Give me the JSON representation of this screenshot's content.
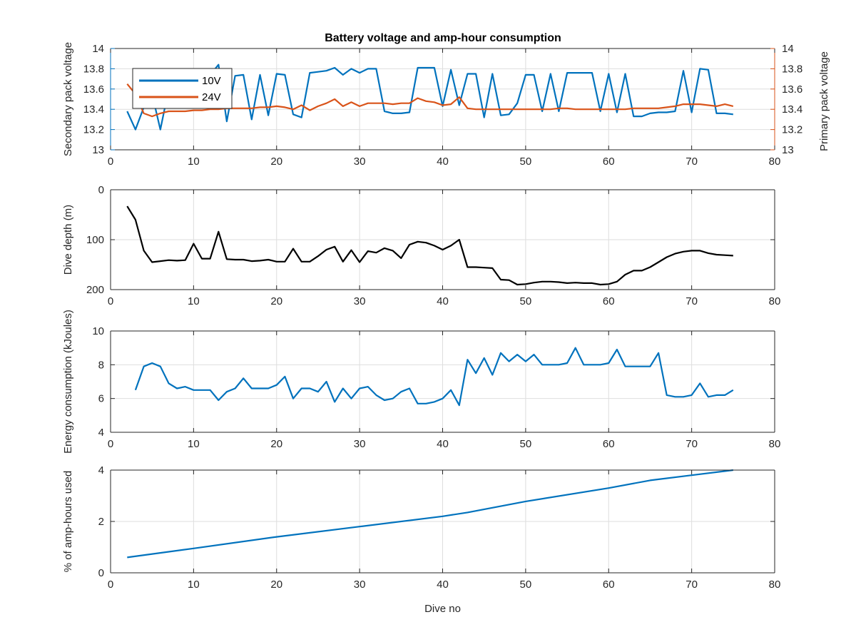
{
  "figure": {
    "title": "Battery voltage and amp-hour consumption",
    "colors": {
      "blue": "#0072BD",
      "orange": "#D95319",
      "black": "#000000",
      "axis": "#262626",
      "grid": "#dedede"
    }
  },
  "chart_data": [
    {
      "type": "line",
      "title": "Battery voltage and amp-hour consumption",
      "xlabel": "",
      "ylabel": "Secondary pack voltage",
      "ylabel_right": "Primary pack voltage",
      "xlim": [
        0,
        80
      ],
      "ylim": [
        13,
        14
      ],
      "ylim_right": [
        13,
        14
      ],
      "xticks": [
        0,
        10,
        20,
        30,
        40,
        50,
        60,
        70,
        80
      ],
      "yticks": [
        13,
        13.2,
        13.4,
        13.6,
        13.8,
        14
      ],
      "yticks_right": [
        13,
        13.2,
        13.4,
        13.6,
        13.8,
        14
      ],
      "grid": true,
      "legend": "top-left",
      "series": [
        {
          "name": "10V",
          "axis": "left",
          "color": "#0072BD",
          "x": [
            2,
            3,
            4,
            5,
            6,
            7,
            8,
            9,
            10,
            11,
            12,
            13,
            14,
            15,
            16,
            17,
            18,
            19,
            20,
            21,
            22,
            23,
            24,
            25,
            26,
            27,
            28,
            29,
            30,
            31,
            32,
            33,
            34,
            35,
            36,
            37,
            38,
            39,
            40,
            41,
            42,
            43,
            44,
            45,
            46,
            47,
            48,
            49,
            50,
            51,
            52,
            53,
            54,
            55,
            56,
            57,
            58,
            59,
            60,
            61,
            62,
            63,
            64,
            65,
            66,
            67,
            68,
            69,
            70,
            71,
            72,
            73,
            74,
            75
          ],
          "values": [
            13.38,
            13.2,
            13.42,
            13.55,
            13.2,
            13.6,
            13.68,
            13.7,
            13.72,
            13.7,
            13.74,
            13.84,
            13.28,
            13.73,
            13.74,
            13.3,
            13.74,
            13.34,
            13.75,
            13.74,
            13.35,
            13.32,
            13.76,
            13.77,
            13.78,
            13.81,
            13.74,
            13.8,
            13.76,
            13.8,
            13.8,
            13.38,
            13.36,
            13.36,
            13.37,
            13.81,
            13.81,
            13.81,
            13.43,
            13.79,
            13.44,
            13.75,
            13.75,
            13.32,
            13.75,
            13.34,
            13.35,
            13.46,
            13.74,
            13.74,
            13.38,
            13.75,
            13.38,
            13.76,
            13.76,
            13.76,
            13.76,
            13.38,
            13.75,
            13.37,
            13.75,
            13.33,
            13.33,
            13.36,
            13.37,
            13.37,
            13.38,
            13.78,
            13.37,
            13.8,
            13.79,
            13.36,
            13.36,
            13.35
          ]
        },
        {
          "name": "24V",
          "axis": "right",
          "color": "#D95319",
          "x": [
            2,
            3,
            4,
            5,
            6,
            7,
            8,
            9,
            10,
            11,
            12,
            13,
            14,
            15,
            16,
            17,
            18,
            19,
            20,
            21,
            22,
            23,
            24,
            25,
            26,
            27,
            28,
            29,
            30,
            31,
            32,
            33,
            34,
            35,
            36,
            37,
            38,
            39,
            40,
            41,
            42,
            43,
            44,
            45,
            46,
            47,
            48,
            49,
            50,
            51,
            52,
            53,
            54,
            55,
            56,
            57,
            58,
            59,
            60,
            61,
            62,
            63,
            64,
            65,
            66,
            67,
            68,
            69,
            70,
            71,
            72,
            73,
            74,
            75
          ],
          "values": [
            13.65,
            13.55,
            13.36,
            13.33,
            13.36,
            13.38,
            13.38,
            13.38,
            13.39,
            13.39,
            13.4,
            13.4,
            13.41,
            13.41,
            13.41,
            13.41,
            13.42,
            13.42,
            13.43,
            13.42,
            13.4,
            13.44,
            13.39,
            13.43,
            13.46,
            13.5,
            13.43,
            13.47,
            13.43,
            13.46,
            13.46,
            13.46,
            13.45,
            13.46,
            13.46,
            13.51,
            13.48,
            13.47,
            13.44,
            13.45,
            13.52,
            13.41,
            13.4,
            13.4,
            13.4,
            13.4,
            13.4,
            13.4,
            13.4,
            13.4,
            13.4,
            13.4,
            13.41,
            13.41,
            13.4,
            13.4,
            13.4,
            13.4,
            13.4,
            13.4,
            13.4,
            13.41,
            13.41,
            13.41,
            13.41,
            13.42,
            13.43,
            13.45,
            13.45,
            13.45,
            13.44,
            13.43,
            13.45,
            13.43
          ]
        }
      ]
    },
    {
      "type": "line",
      "xlabel": "",
      "ylabel": "Dive depth (m)",
      "xlim": [
        0,
        80
      ],
      "ylim": [
        0,
        200
      ],
      "y_reversed": true,
      "xticks": [
        0,
        10,
        20,
        30,
        40,
        50,
        60,
        70,
        80
      ],
      "yticks": [
        0,
        100,
        200
      ],
      "grid": true,
      "series": [
        {
          "color": "#000000",
          "x": [
            2,
            3,
            4,
            5,
            6,
            7,
            8,
            9,
            10,
            11,
            12,
            13,
            14,
            15,
            16,
            17,
            18,
            19,
            20,
            21,
            22,
            23,
            24,
            25,
            26,
            27,
            28,
            29,
            30,
            31,
            32,
            33,
            34,
            35,
            36,
            37,
            38,
            39,
            40,
            41,
            42,
            43,
            44,
            45,
            46,
            47,
            48,
            49,
            50,
            51,
            52,
            53,
            54,
            55,
            56,
            57,
            58,
            59,
            60,
            61,
            62,
            63,
            64,
            65,
            66,
            67,
            68,
            69,
            70,
            71,
            72,
            73,
            74,
            75
          ],
          "values": [
            33,
            60,
            122,
            145,
            143,
            141,
            142,
            141,
            108,
            138,
            138,
            84,
            139,
            140,
            140,
            143,
            142,
            140,
            144,
            144,
            118,
            144,
            144,
            133,
            120,
            114,
            144,
            121,
            145,
            123,
            126,
            117,
            122,
            137,
            110,
            104,
            106,
            112,
            120,
            112,
            100,
            155,
            155,
            156,
            157,
            180,
            181,
            190,
            189,
            186,
            184,
            184,
            185,
            187,
            186,
            187,
            187,
            190,
            189,
            184,
            170,
            162,
            162,
            155,
            145,
            135,
            128,
            124,
            122,
            122,
            127,
            130,
            131,
            132
          ]
        }
      ]
    },
    {
      "type": "line",
      "xlabel": "",
      "ylabel": "Energy consumption (kJoules)",
      "xlim": [
        0,
        80
      ],
      "ylim": [
        4,
        10
      ],
      "xticks": [
        0,
        10,
        20,
        30,
        40,
        50,
        60,
        70,
        80
      ],
      "yticks": [
        4,
        6,
        8,
        10
      ],
      "grid": true,
      "series": [
        {
          "color": "#0072BD",
          "x": [
            3,
            4,
            5,
            6,
            7,
            8,
            9,
            10,
            11,
            12,
            13,
            14,
            15,
            16,
            17,
            18,
            19,
            20,
            21,
            22,
            23,
            24,
            25,
            26,
            27,
            28,
            29,
            30,
            31,
            32,
            33,
            34,
            35,
            36,
            37,
            38,
            39,
            40,
            41,
            42,
            43,
            44,
            45,
            46,
            47,
            48,
            49,
            50,
            51,
            52,
            53,
            54,
            55,
            56,
            57,
            58,
            59,
            60,
            61,
            62,
            63,
            64,
            65,
            66,
            67,
            68,
            69,
            70,
            71,
            72,
            73,
            74,
            75
          ],
          "values": [
            6.5,
            7.9,
            8.1,
            7.9,
            6.9,
            6.6,
            6.7,
            6.5,
            6.5,
            6.5,
            5.9,
            6.4,
            6.6,
            7.2,
            6.6,
            6.6,
            6.6,
            6.8,
            7.3,
            6.0,
            6.6,
            6.6,
            6.4,
            7.0,
            5.8,
            6.6,
            6.0,
            6.6,
            6.7,
            6.2,
            5.9,
            6.0,
            6.4,
            6.6,
            5.7,
            5.7,
            5.8,
            6.0,
            6.5,
            5.6,
            8.3,
            7.5,
            8.4,
            7.4,
            8.7,
            8.2,
            8.6,
            8.2,
            8.6,
            8.0,
            8.0,
            8.0,
            8.1,
            9.0,
            8.0,
            8.0,
            8.0,
            8.1,
            8.9,
            7.9,
            7.9,
            7.9,
            7.9,
            8.7,
            6.2,
            6.1,
            6.1,
            6.2,
            6.9,
            6.1,
            6.2,
            6.2,
            6.5
          ]
        }
      ]
    },
    {
      "type": "line",
      "xlabel": "Dive no",
      "ylabel": "% of amp-hours used",
      "xlim": [
        0,
        80
      ],
      "ylim": [
        0,
        4
      ],
      "xticks": [
        0,
        10,
        20,
        30,
        40,
        50,
        60,
        70,
        80
      ],
      "yticks": [
        0,
        2,
        4
      ],
      "grid": true,
      "series": [
        {
          "color": "#0072BD",
          "x": [
            2,
            10,
            20,
            30,
            40,
            43,
            50,
            60,
            65,
            70,
            75
          ],
          "values": [
            0.6,
            0.95,
            1.4,
            1.8,
            2.2,
            2.35,
            2.78,
            3.3,
            3.6,
            3.8,
            4.0
          ]
        }
      ]
    }
  ]
}
